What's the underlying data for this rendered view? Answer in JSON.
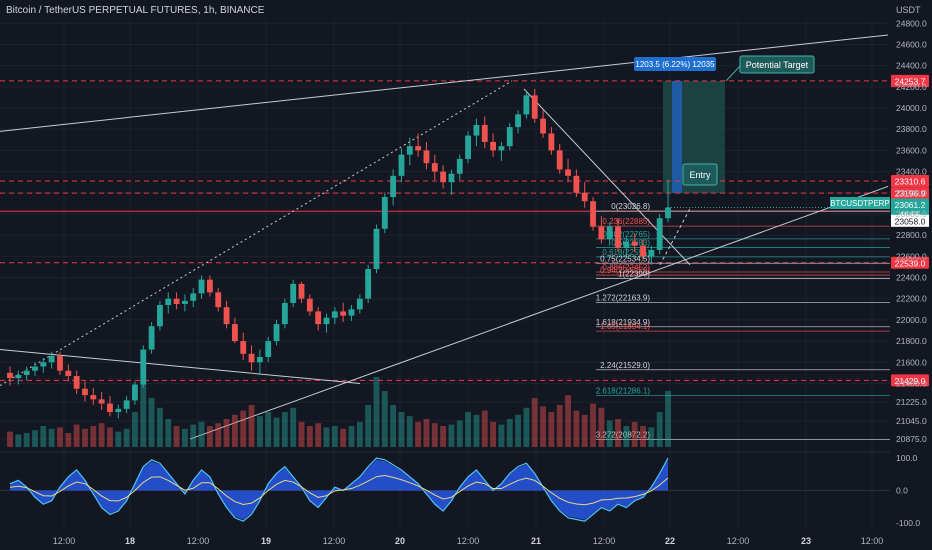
{
  "header": {
    "symbol_title": "Bitcoin / TetherUS PERPETUAL FUTURES, 1h, BINANCE",
    "axis_unit": "USDT"
  },
  "colors": {
    "background": "#131722",
    "up": "#26a69a",
    "down": "#ef5350",
    "grid": "#1e222d",
    "text": "#b2b5be",
    "red_level": "#f23645",
    "target_box": "#1f6fd1",
    "profit_zone": "#1e4d48",
    "white_line": "#c9ccd4",
    "oscillator_fill": "#2962ff",
    "oscillator_line": "#4fc3f7"
  },
  "chart_data": {
    "type": "candlestick",
    "title": "Bitcoin / TetherUS PERPETUAL FUTURES, 1h, BINANCE",
    "ylabel": "USDT",
    "ylim": [
      20800,
      24850
    ],
    "y_ticks": [
      "24800.0",
      "24600.0",
      "24400.0",
      "24200.0",
      "24000.0",
      "23800.0",
      "23600.0",
      "23400.0",
      "23200.0",
      "23000.0",
      "22800.0",
      "22600.0",
      "22400.0",
      "22200.0",
      "22000.0",
      "21800.0",
      "21600.0",
      "21400.0",
      "21225.0",
      "21045.0",
      "20875.0"
    ],
    "x_ticks": [
      "12:00",
      "18",
      "12:00",
      "19",
      "12:00",
      "20",
      "12:00",
      "21",
      "12:00",
      "22",
      "12:00",
      "23",
      "12:00"
    ],
    "candles": [
      [
        21500,
        21560,
        21380,
        21450
      ],
      [
        21450,
        21520,
        21390,
        21480
      ],
      [
        21480,
        21560,
        21430,
        21520
      ],
      [
        21520,
        21600,
        21470,
        21560
      ],
      [
        21560,
        21640,
        21500,
        21600
      ],
      [
        21600,
        21700,
        21540,
        21660
      ],
      [
        21660,
        21700,
        21480,
        21520
      ],
      [
        21520,
        21580,
        21420,
        21470
      ],
      [
        21470,
        21520,
        21300,
        21350
      ],
      [
        21350,
        21420,
        21230,
        21290
      ],
      [
        21290,
        21360,
        21200,
        21250
      ],
      [
        21250,
        21320,
        21150,
        21210
      ],
      [
        21210,
        21280,
        21090,
        21130
      ],
      [
        21130,
        21200,
        21070,
        21160
      ],
      [
        21160,
        21280,
        21120,
        21240
      ],
      [
        21240,
        21420,
        21200,
        21390
      ],
      [
        21390,
        21760,
        21360,
        21720
      ],
      [
        21720,
        21980,
        21680,
        21940
      ],
      [
        21940,
        22180,
        21900,
        22140
      ],
      [
        22140,
        22260,
        22060,
        22200
      ],
      [
        22200,
        22260,
        22100,
        22150
      ],
      [
        22150,
        22240,
        22080,
        22180
      ],
      [
        22180,
        22300,
        22120,
        22250
      ],
      [
        22250,
        22420,
        22200,
        22380
      ],
      [
        22380,
        22420,
        22220,
        22260
      ],
      [
        22260,
        22300,
        22080,
        22120
      ],
      [
        22120,
        22180,
        21920,
        21960
      ],
      [
        21960,
        22020,
        21780,
        21800
      ],
      [
        21800,
        21880,
        21620,
        21680
      ],
      [
        21680,
        21760,
        21520,
        21600
      ],
      [
        21600,
        21720,
        21480,
        21650
      ],
      [
        21650,
        21840,
        21600,
        21800
      ],
      [
        21800,
        22000,
        21760,
        21960
      ],
      [
        21960,
        22200,
        21920,
        22160
      ],
      [
        22160,
        22380,
        22120,
        22340
      ],
      [
        22340,
        22360,
        22160,
        22200
      ],
      [
        22200,
        22240,
        22040,
        22080
      ],
      [
        22080,
        22120,
        21900,
        21960
      ],
      [
        21960,
        22060,
        21880,
        22020
      ],
      [
        22020,
        22120,
        21960,
        22080
      ],
      [
        22080,
        22160,
        21980,
        22040
      ],
      [
        22040,
        22140,
        21990,
        22100
      ],
      [
        22100,
        22240,
        22060,
        22200
      ],
      [
        22200,
        22520,
        22160,
        22480
      ],
      [
        22480,
        22900,
        22440,
        22860
      ],
      [
        22860,
        23200,
        22820,
        23160
      ],
      [
        23160,
        23420,
        23080,
        23360
      ],
      [
        23360,
        23620,
        23300,
        23560
      ],
      [
        23560,
        23720,
        23460,
        23640
      ],
      [
        23640,
        23760,
        23540,
        23600
      ],
      [
        23600,
        23680,
        23420,
        23480
      ],
      [
        23480,
        23560,
        23320,
        23400
      ],
      [
        23400,
        23460,
        23240,
        23300
      ],
      [
        23300,
        23420,
        23180,
        23380
      ],
      [
        23380,
        23560,
        23320,
        23520
      ],
      [
        23520,
        23780,
        23480,
        23740
      ],
      [
        23740,
        23900,
        23640,
        23840
      ],
      [
        23840,
        23920,
        23620,
        23680
      ],
      [
        23680,
        23760,
        23540,
        23600
      ],
      [
        23600,
        23680,
        23500,
        23640
      ],
      [
        23640,
        23860,
        23600,
        23820
      ],
      [
        23820,
        23980,
        23760,
        23940
      ],
      [
        23940,
        24160,
        23900,
        24120
      ],
      [
        24120,
        24180,
        23860,
        23900
      ],
      [
        23900,
        23980,
        23720,
        23760
      ],
      [
        23760,
        23820,
        23560,
        23600
      ],
      [
        23600,
        23660,
        23380,
        23420
      ],
      [
        23420,
        23520,
        23300,
        23360
      ],
      [
        23360,
        23420,
        23160,
        23200
      ],
      [
        23200,
        23300,
        23060,
        23120
      ],
      [
        23120,
        23160,
        22840,
        22880
      ],
      [
        22880,
        22980,
        22720,
        22760
      ],
      [
        22760,
        22920,
        22700,
        22880
      ],
      [
        22880,
        22960,
        22640,
        22680
      ],
      [
        22680,
        22780,
        22600,
        22740
      ],
      [
        22740,
        22820,
        22640,
        22700
      ],
      [
        22700,
        22760,
        22560,
        22600
      ],
      [
        22600,
        22700,
        22520,
        22660
      ],
      [
        22660,
        23000,
        22620,
        22960
      ],
      [
        22960,
        23320,
        22920,
        23061
      ]
    ],
    "volume": [
      0.22,
      0.18,
      0.2,
      0.24,
      0.3,
      0.26,
      0.28,
      0.2,
      0.32,
      0.26,
      0.3,
      0.34,
      0.28,
      0.22,
      0.26,
      0.5,
      0.92,
      0.7,
      0.56,
      0.4,
      0.3,
      0.26,
      0.32,
      0.36,
      0.3,
      0.34,
      0.4,
      0.46,
      0.52,
      0.6,
      0.44,
      0.5,
      0.42,
      0.5,
      0.56,
      0.36,
      0.3,
      0.34,
      0.28,
      0.3,
      0.26,
      0.3,
      0.36,
      0.6,
      1.0,
      0.8,
      0.6,
      0.5,
      0.44,
      0.36,
      0.4,
      0.34,
      0.3,
      0.32,
      0.38,
      0.5,
      0.46,
      0.52,
      0.36,
      0.32,
      0.4,
      0.46,
      0.56,
      0.7,
      0.58,
      0.5,
      0.6,
      0.74,
      0.52,
      0.46,
      0.62,
      0.56,
      0.38,
      0.4,
      0.3,
      0.36,
      0.3,
      0.28,
      0.5,
      0.8
    ],
    "oscillator": [
      0.2,
      0.3,
      0.1,
      -0.2,
      -0.4,
      -0.3,
      0.1,
      0.4,
      0.6,
      0.3,
      -0.1,
      -0.5,
      -0.7,
      -0.6,
      -0.3,
      0.2,
      0.7,
      0.9,
      0.8,
      0.5,
      0.2,
      -0.1,
      0.3,
      0.6,
      0.4,
      -0.1,
      -0.5,
      -0.8,
      -0.9,
      -0.7,
      -0.3,
      0.2,
      0.5,
      0.7,
      0.4,
      0.1,
      -0.3,
      -0.5,
      -0.2,
      0.1,
      0.0,
      0.2,
      0.4,
      0.7,
      0.95,
      0.9,
      0.75,
      0.6,
      0.4,
      0.2,
      -0.1,
      -0.4,
      -0.6,
      -0.3,
      0.1,
      0.4,
      0.6,
      0.3,
      0.0,
      0.2,
      0.5,
      0.7,
      0.8,
      0.5,
      0.1,
      -0.3,
      -0.6,
      -0.8,
      -0.85,
      -0.9,
      -0.7,
      -0.5,
      -0.6,
      -0.4,
      -0.5,
      -0.3,
      -0.2,
      0.1,
      0.5,
      0.95
    ],
    "osc_ticks": [
      "100.0",
      "0.0",
      "-100.0"
    ],
    "horizontal_levels": [
      {
        "price": 24256.1,
        "label": "24256.1",
        "style": "dashed-red"
      },
      {
        "price": 24253.7,
        "label": "24253.7",
        "style": "box-red"
      },
      {
        "price": 23310.6,
        "label": "23310.6",
        "style": "dashed-red"
      },
      {
        "price": 23196.9,
        "label": "23196.9",
        "style": "dashed-red"
      },
      {
        "price": 23026.2,
        "label": "23026.2",
        "style": "solid-red"
      },
      {
        "price": 22539.0,
        "label": "22539.0",
        "style": "dashed-red"
      },
      {
        "price": 21429.0,
        "label": "21429.0",
        "style": "dashed-red"
      }
    ],
    "price_tags": [
      {
        "price": 23061.2,
        "label": "23061.2",
        "sub": "46:55",
        "color": "#26a69a"
      },
      {
        "price": 23058.0,
        "label": "23058.0",
        "color": "#ffffff",
        "text": "#131722"
      }
    ],
    "fib_labels": [
      {
        "price": 23026.8,
        "label": "0(23026.8)",
        "color": "#d1d4dc"
      },
      {
        "price": 22885.0,
        "label": "0.236(22885)",
        "color": "#ef5350"
      },
      {
        "price": 22765.0,
        "label": "0.382(22765)",
        "color": "#26a69a"
      },
      {
        "price": 22683.0,
        "label": "0.5(22683)",
        "color": "#26a69a"
      },
      {
        "price": 22595.0,
        "label": "0.618(22595)",
        "color": "#26a69a"
      },
      {
        "price": 22534.5,
        "label": "0.75(22534.5)",
        "color": "#d1d4dc"
      },
      {
        "price": 22452.0,
        "label": "0.886(22452)",
        "color": "#ef5350"
      },
      {
        "price": 22423.0,
        "label": "0.94(22423.0)",
        "color": "#ef5350"
      },
      {
        "price": 22390.0,
        "label": "1(22390)",
        "color": "#d1d4dc"
      },
      {
        "price": 22163.9,
        "label": "1.272(22163.9)",
        "color": "#d1d4dc"
      },
      {
        "price": 21934.9,
        "label": "1.618(21934.9)",
        "color": "#d1d4dc"
      },
      {
        "price": 21894.1,
        "label": "1.65(21894.1)",
        "color": "#ef5350"
      },
      {
        "price": 21529.0,
        "label": "2.24(21529.0)",
        "color": "#d1d4dc"
      },
      {
        "price": 21286.1,
        "label": "2.618(21286.1)",
        "color": "#26a69a"
      },
      {
        "price": 20872.2,
        "label": "3.272(20872.2)",
        "color": "#d1d4dc"
      }
    ],
    "annotations": {
      "target_box": "1203.5 (6.22%) 12035",
      "potential_target": "Potential Target",
      "entry": "Entry",
      "symbol_tag": "BTCUSDTPERP"
    }
  }
}
